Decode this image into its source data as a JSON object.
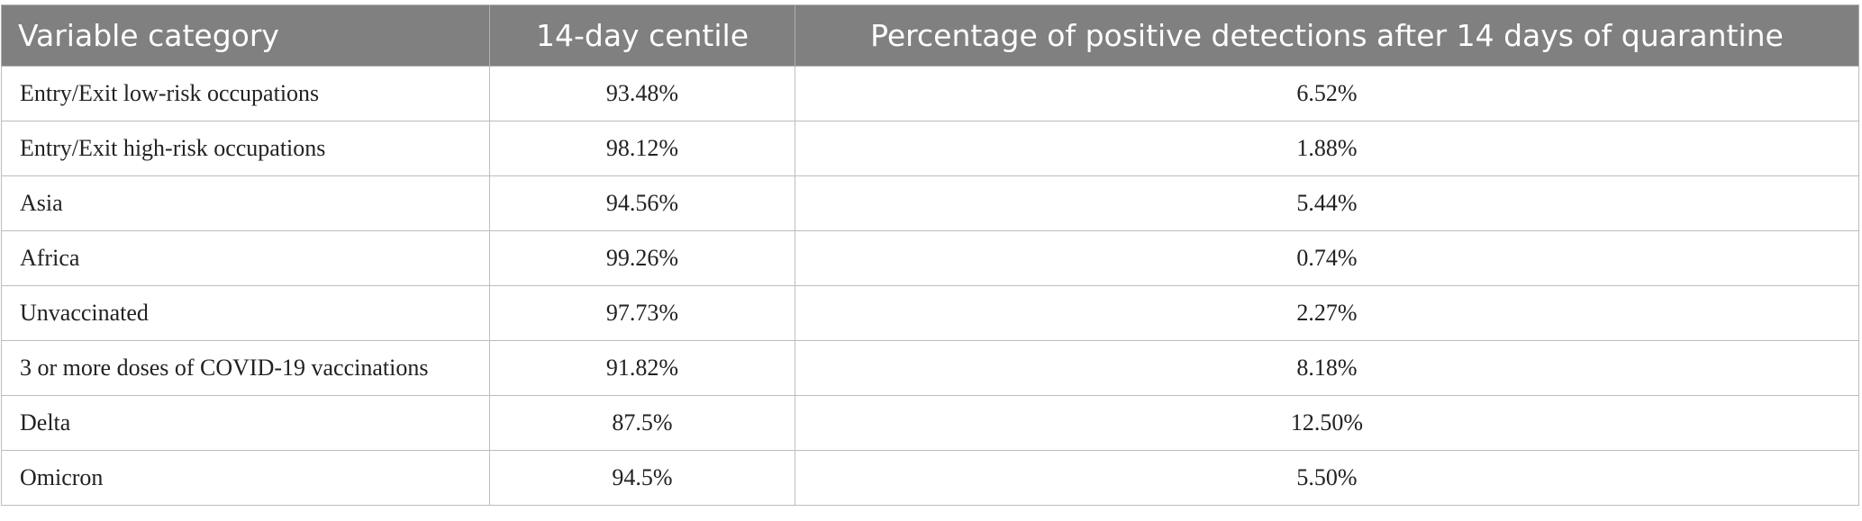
{
  "table": {
    "header": [
      "Variable category",
      "14-day centile",
      "Percentage of positive detections after 14 days of quarantine"
    ],
    "rows": [
      [
        "Entry/Exit low-risk occupations",
        "93.48%",
        "6.52%"
      ],
      [
        "Entry/Exit high-risk occupations",
        "98.12%",
        "1.88%"
      ],
      [
        "Asia",
        "94.56%",
        "5.44%"
      ],
      [
        "Africa",
        "99.26%",
        "0.74%"
      ],
      [
        "Unvaccinated",
        "97.73%",
        "2.27%"
      ],
      [
        "3 or more doses of COVID-19 vaccinations",
        "91.82%",
        "8.18%"
      ],
      [
        "Delta",
        "87.5%",
        "12.50%"
      ],
      [
        "Omicron",
        "94.5%",
        "5.50%"
      ]
    ]
  }
}
